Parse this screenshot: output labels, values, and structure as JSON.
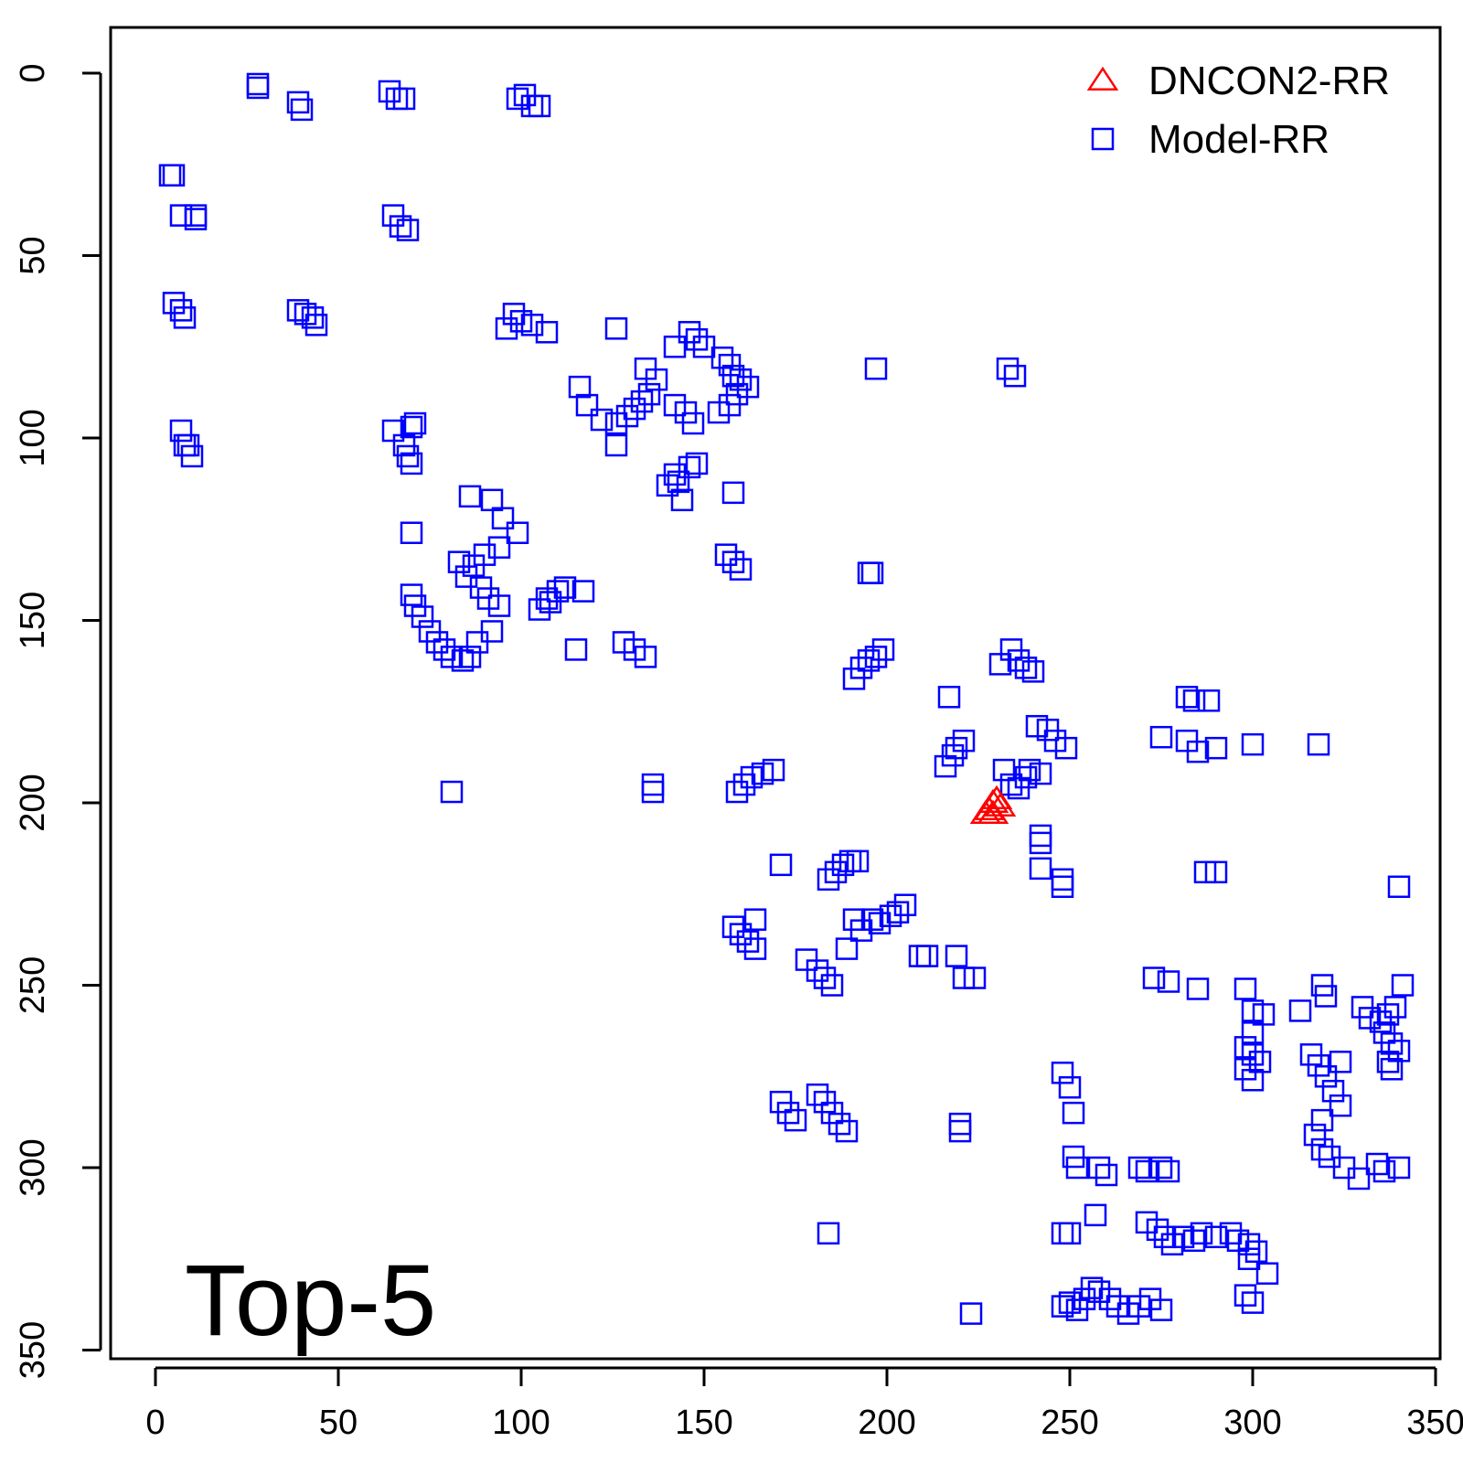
{
  "chart_data": {
    "type": "scatter",
    "title": "",
    "xlabel": "",
    "ylabel": "",
    "annotation": "Top-5",
    "xlim": [
      0,
      350
    ],
    "ylim": [
      0,
      350
    ],
    "y_inverted": true,
    "x_ticks": [
      0,
      50,
      100,
      150,
      200,
      250,
      300,
      350
    ],
    "y_ticks": [
      0,
      50,
      100,
      150,
      200,
      250,
      300,
      350
    ],
    "grid": false,
    "legend_position": "top-right",
    "series": [
      {
        "name": "DNCON2-RR",
        "marker": "triangle",
        "color": "#ff0000",
        "points": [
          [
            229,
            200
          ],
          [
            230,
            199
          ],
          [
            228,
            202
          ],
          [
            227,
            203
          ],
          [
            231,
            201
          ],
          [
            229,
            203
          ]
        ]
      },
      {
        "name": "Model-RR",
        "marker": "square",
        "color": "#0000ff",
        "points": [
          [
            28,
            3
          ],
          [
            28,
            4
          ],
          [
            39,
            8
          ],
          [
            40,
            10
          ],
          [
            64,
            5
          ],
          [
            66,
            7
          ],
          [
            68,
            7
          ],
          [
            99,
            7
          ],
          [
            101,
            6
          ],
          [
            103,
            9
          ],
          [
            105,
            9
          ],
          [
            4,
            28
          ],
          [
            5,
            28
          ],
          [
            7,
            39
          ],
          [
            11,
            39
          ],
          [
            11,
            40
          ],
          [
            65,
            39
          ],
          [
            67,
            42
          ],
          [
            69,
            43
          ],
          [
            5,
            63
          ],
          [
            7,
            65
          ],
          [
            8,
            67
          ],
          [
            39,
            65
          ],
          [
            41,
            66
          ],
          [
            43,
            67
          ],
          [
            44,
            69
          ],
          [
            96,
            70
          ],
          [
            98,
            66
          ],
          [
            100,
            68
          ],
          [
            103,
            69
          ],
          [
            107,
            71
          ],
          [
            126,
            70
          ],
          [
            146,
            71
          ],
          [
            148,
            73
          ],
          [
            150,
            75
          ],
          [
            142,
            75
          ],
          [
            155,
            78
          ],
          [
            157,
            80
          ],
          [
            158,
            83
          ],
          [
            160,
            84
          ],
          [
            162,
            86
          ],
          [
            116,
            86
          ],
          [
            118,
            91
          ],
          [
            122,
            95
          ],
          [
            126,
            96
          ],
          [
            129,
            94
          ],
          [
            131,
            92
          ],
          [
            133,
            90
          ],
          [
            135,
            88
          ],
          [
            137,
            84
          ],
          [
            134,
            81
          ],
          [
            126,
            102
          ],
          [
            142,
            91
          ],
          [
            145,
            93
          ],
          [
            147,
            96
          ],
          [
            154,
            93
          ],
          [
            157,
            91
          ],
          [
            159,
            88
          ],
          [
            197,
            81
          ],
          [
            233,
            81
          ],
          [
            235,
            83
          ],
          [
            7,
            98
          ],
          [
            8,
            102
          ],
          [
            9,
            102
          ],
          [
            10,
            105
          ],
          [
            65,
            98
          ],
          [
            68,
            102
          ],
          [
            70,
            97
          ],
          [
            71,
            96
          ],
          [
            69,
            105
          ],
          [
            70,
            107
          ],
          [
            140,
            113
          ],
          [
            142,
            110
          ],
          [
            143,
            112
          ],
          [
            144,
            117
          ],
          [
            146,
            108
          ],
          [
            148,
            107
          ],
          [
            158,
            115
          ],
          [
            86,
            116
          ],
          [
            92,
            117
          ],
          [
            70,
            126
          ],
          [
            95,
            122
          ],
          [
            99,
            126
          ],
          [
            94,
            130
          ],
          [
            90,
            132
          ],
          [
            87,
            135
          ],
          [
            83,
            134
          ],
          [
            85,
            138
          ],
          [
            89,
            141
          ],
          [
            91,
            144
          ],
          [
            94,
            146
          ],
          [
            92,
            153
          ],
          [
            88,
            156
          ],
          [
            110,
            142
          ],
          [
            112,
            141
          ],
          [
            107,
            144
          ],
          [
            105,
            147
          ],
          [
            108,
            145
          ],
          [
            117,
            142
          ],
          [
            70,
            143
          ],
          [
            71,
            146
          ],
          [
            73,
            149
          ],
          [
            75,
            153
          ],
          [
            77,
            156
          ],
          [
            79,
            158
          ],
          [
            81,
            160
          ],
          [
            84,
            161
          ],
          [
            86,
            160
          ],
          [
            156,
            132
          ],
          [
            158,
            134
          ],
          [
            160,
            136
          ],
          [
            195,
            137
          ],
          [
            196,
            137
          ],
          [
            128,
            156
          ],
          [
            131,
            158
          ],
          [
            134,
            160
          ],
          [
            115,
            158
          ],
          [
            191,
            166
          ],
          [
            193,
            163
          ],
          [
            195,
            161
          ],
          [
            197,
            160
          ],
          [
            199,
            158
          ],
          [
            231,
            162
          ],
          [
            234,
            158
          ],
          [
            236,
            161
          ],
          [
            238,
            163
          ],
          [
            240,
            164
          ],
          [
            217,
            171
          ],
          [
            216,
            190
          ],
          [
            218,
            187
          ],
          [
            219,
            185
          ],
          [
            221,
            183
          ],
          [
            241,
            179
          ],
          [
            244,
            180
          ],
          [
            246,
            183
          ],
          [
            249,
            185
          ],
          [
            232,
            191
          ],
          [
            234,
            195
          ],
          [
            236,
            196
          ],
          [
            238,
            193
          ],
          [
            239,
            191
          ],
          [
            242,
            192
          ],
          [
            81,
            197
          ],
          [
            136,
            195
          ],
          [
            136,
            197
          ],
          [
            159,
            197
          ],
          [
            161,
            195
          ],
          [
            163,
            193
          ],
          [
            166,
            192
          ],
          [
            169,
            191
          ],
          [
            242,
            209
          ],
          [
            242,
            211
          ],
          [
            242,
            218
          ],
          [
            248,
            221
          ],
          [
            248,
            223
          ],
          [
            282,
            171
          ],
          [
            284,
            172
          ],
          [
            288,
            172
          ],
          [
            282,
            183
          ],
          [
            285,
            186
          ],
          [
            290,
            185
          ],
          [
            300,
            184
          ],
          [
            318,
            184
          ],
          [
            275,
            182
          ],
          [
            171,
            217
          ],
          [
            184,
            221
          ],
          [
            186,
            219
          ],
          [
            188,
            217
          ],
          [
            190,
            216
          ],
          [
            192,
            216
          ],
          [
            193,
            235
          ],
          [
            196,
            232
          ],
          [
            198,
            233
          ],
          [
            201,
            231
          ],
          [
            203,
            230
          ],
          [
            205,
            228
          ],
          [
            191,
            232
          ],
          [
            189,
            240
          ],
          [
            287,
            219
          ],
          [
            290,
            219
          ],
          [
            340,
            223
          ],
          [
            158,
            234
          ],
          [
            160,
            236
          ],
          [
            162,
            238
          ],
          [
            164,
            240
          ],
          [
            164,
            232
          ],
          [
            178,
            243
          ],
          [
            181,
            246
          ],
          [
            183,
            248
          ],
          [
            185,
            250
          ],
          [
            209,
            242
          ],
          [
            211,
            242
          ],
          [
            219,
            242
          ],
          [
            221,
            248
          ],
          [
            224,
            248
          ],
          [
            273,
            248
          ],
          [
            277,
            249
          ],
          [
            285,
            251
          ],
          [
            298,
            251
          ],
          [
            300,
            257
          ],
          [
            303,
            258
          ],
          [
            300,
            263
          ],
          [
            319,
            250
          ],
          [
            320,
            253
          ],
          [
            313,
            257
          ],
          [
            330,
            256
          ],
          [
            332,
            259
          ],
          [
            335,
            260
          ],
          [
            337,
            258
          ],
          [
            339,
            256
          ],
          [
            341,
            250
          ],
          [
            336,
            263
          ],
          [
            338,
            266
          ],
          [
            340,
            268
          ],
          [
            337,
            271
          ],
          [
            338,
            273
          ],
          [
            298,
            267
          ],
          [
            300,
            269
          ],
          [
            302,
            271
          ],
          [
            298,
            273
          ],
          [
            300,
            276
          ],
          [
            316,
            269
          ],
          [
            318,
            272
          ],
          [
            320,
            275
          ],
          [
            322,
            279
          ],
          [
            324,
            283
          ],
          [
            319,
            287
          ],
          [
            317,
            291
          ],
          [
            319,
            295
          ],
          [
            321,
            297
          ],
          [
            324,
            271
          ],
          [
            171,
            282
          ],
          [
            173,
            285
          ],
          [
            175,
            287
          ],
          [
            181,
            280
          ],
          [
            183,
            282
          ],
          [
            185,
            285
          ],
          [
            187,
            288
          ],
          [
            189,
            290
          ],
          [
            220,
            288
          ],
          [
            220,
            290
          ],
          [
            248,
            274
          ],
          [
            250,
            278
          ],
          [
            251,
            285
          ],
          [
            251,
            297
          ],
          [
            252,
            300
          ],
          [
            258,
            300
          ],
          [
            260,
            302
          ],
          [
            257,
            313
          ],
          [
            269,
            300
          ],
          [
            271,
            301
          ],
          [
            275,
            300
          ],
          [
            277,
            301
          ],
          [
            184,
            318
          ],
          [
            248,
            318
          ],
          [
            250,
            318
          ],
          [
            271,
            315
          ],
          [
            274,
            317
          ],
          [
            276,
            319
          ],
          [
            278,
            321
          ],
          [
            281,
            319
          ],
          [
            284,
            320
          ],
          [
            286,
            318
          ],
          [
            290,
            319
          ],
          [
            294,
            318
          ],
          [
            296,
            320
          ],
          [
            299,
            321
          ],
          [
            301,
            323
          ],
          [
            299,
            325
          ],
          [
            304,
            329
          ],
          [
            325,
            300
          ],
          [
            329,
            303
          ],
          [
            336,
            301
          ],
          [
            340,
            300
          ],
          [
            334,
            299
          ],
          [
            223,
            340
          ],
          [
            248,
            338
          ],
          [
            250,
            337
          ],
          [
            252,
            339
          ],
          [
            254,
            336
          ],
          [
            256,
            333
          ],
          [
            258,
            334
          ],
          [
            261,
            336
          ],
          [
            263,
            338
          ],
          [
            266,
            340
          ],
          [
            269,
            338
          ],
          [
            272,
            336
          ],
          [
            275,
            339
          ],
          [
            298,
            335
          ],
          [
            300,
            337
          ]
        ]
      }
    ]
  }
}
